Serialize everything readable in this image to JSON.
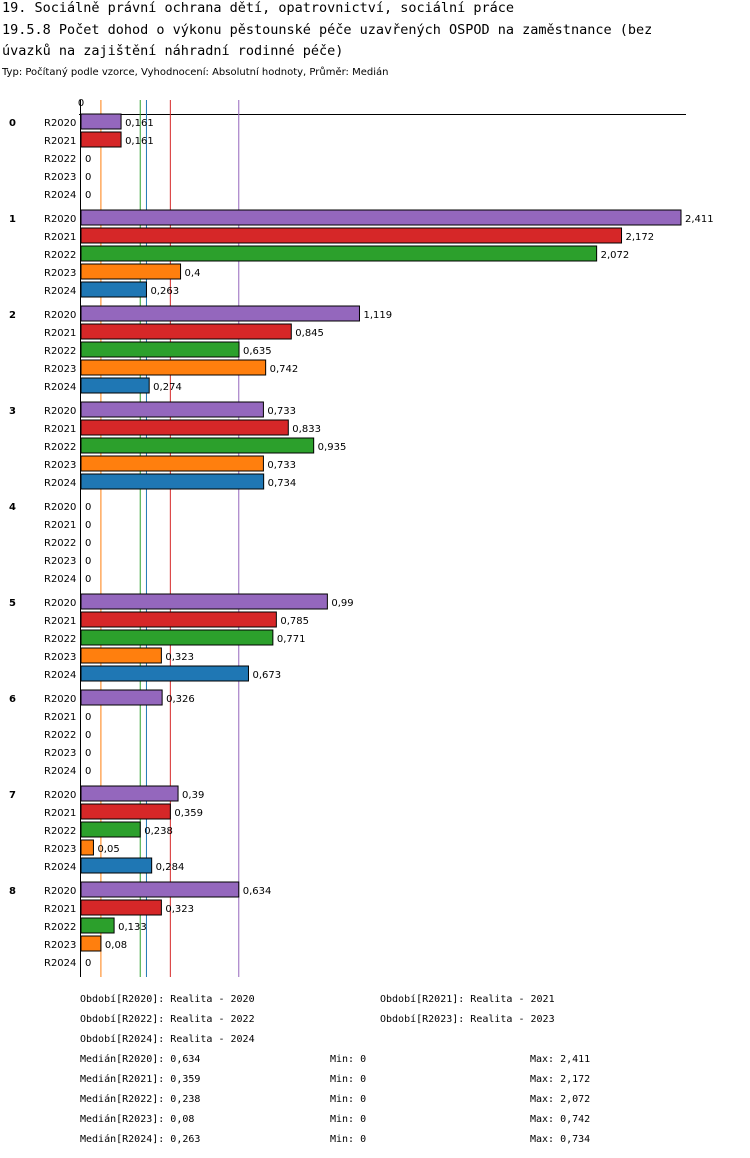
{
  "title_lines": [
    "19. Sociálně právní ochrana dětí, opatrovnictví, sociální práce",
    "19.5.8 Počet dohod o výkonu pěstounské péče uzavřených OSPOD na zaměstnance (bez",
    "úvazků na zajištění náhradní rodinné péče)"
  ],
  "subtitle": "Typ: Počítaný podle vzorce, Vyhodnocení: Absolutní hodnoty, Průměr: Medián",
  "chart_data": {
    "type": "bar",
    "orientation": "horizontal",
    "axis_zero_label": "0",
    "xlim": [
      0,
      2.411
    ],
    "groups": [
      "0",
      "1",
      "2",
      "3",
      "4",
      "5",
      "6",
      "7",
      "8"
    ],
    "series": [
      {
        "name": "R2020",
        "color": "#9467bd",
        "values": [
          0.161,
          2.411,
          1.119,
          0.733,
          0,
          0.99,
          0.326,
          0.39,
          0.634
        ],
        "labels": [
          "0,161",
          "2,411",
          "1,119",
          "0,733",
          "0",
          "0,99",
          "0,326",
          "0,39",
          "0,634"
        ]
      },
      {
        "name": "R2021",
        "color": "#d62728",
        "values": [
          0.161,
          2.172,
          0.845,
          0.833,
          0,
          0.785,
          0,
          0.359,
          0.323
        ],
        "labels": [
          "0,161",
          "2,172",
          "0,845",
          "0,833",
          "0",
          "0,785",
          "0",
          "0,359",
          "0,323"
        ]
      },
      {
        "name": "R2022",
        "color": "#2ca02c",
        "values": [
          0,
          2.072,
          0.635,
          0.935,
          0,
          0.771,
          0,
          0.238,
          0.133
        ],
        "labels": [
          "0",
          "2,072",
          "0,635",
          "0,935",
          "0",
          "0,771",
          "0",
          "0,238",
          "0,133"
        ]
      },
      {
        "name": "R2023",
        "color": "#ff7f0e",
        "values": [
          0,
          0.4,
          0.742,
          0.733,
          0,
          0.323,
          0,
          0.05,
          0.08
        ],
        "labels": [
          "0",
          "0,4",
          "0,742",
          "0,733",
          "0",
          "0,323",
          "0",
          "0,05",
          "0,08"
        ]
      },
      {
        "name": "R2024",
        "color": "#1f77b4",
        "values": [
          0,
          0.263,
          0.274,
          0.734,
          0,
          0.673,
          0,
          0.284,
          0
        ],
        "labels": [
          "0",
          "0,263",
          "0,274",
          "0,734",
          "0",
          "0,673",
          "0",
          "0,284",
          "0"
        ]
      }
    ],
    "median_lines": [
      {
        "series": "R2020",
        "value": 0.634,
        "color": "#9467bd"
      },
      {
        "series": "R2021",
        "value": 0.359,
        "color": "#d62728"
      },
      {
        "series": "R2022",
        "value": 0.238,
        "color": "#2ca02c"
      },
      {
        "series": "R2023",
        "value": 0.08,
        "color": "#ff7f0e"
      },
      {
        "series": "R2024",
        "value": 0.263,
        "color": "#1f77b4"
      }
    ]
  },
  "legend": {
    "periods": [
      "Období[R2020]: Realita - 2020",
      "Období[R2021]: Realita - 2021",
      "Období[R2022]: Realita - 2022",
      "Období[R2023]: Realita - 2023",
      "Období[R2024]: Realita - 2024"
    ],
    "stats": [
      {
        "median": "Medián[R2020]: 0,634",
        "min": "Min: 0",
        "max": "Max: 2,411"
      },
      {
        "median": "Medián[R2021]: 0,359",
        "min": "Min: 0",
        "max": "Max: 2,172"
      },
      {
        "median": "Medián[R2022]: 0,238",
        "min": "Min: 0",
        "max": "Max: 2,072"
      },
      {
        "median": "Medián[R2023]: 0,08",
        "min": "Min: 0",
        "max": "Max: 0,742"
      },
      {
        "median": "Medián[R2024]: 0,263",
        "min": "Min: 0",
        "max": "Max: 0,734"
      }
    ]
  }
}
